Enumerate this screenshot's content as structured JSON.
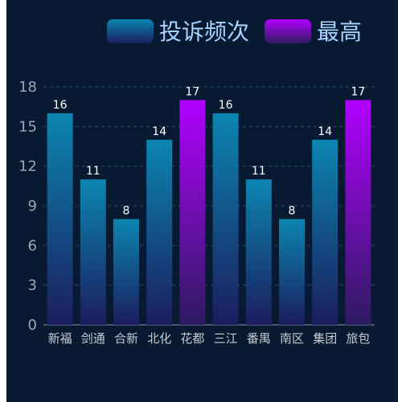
{
  "chart_data": {
    "type": "bar",
    "categories": [
      "新福",
      "剑通",
      "合新",
      "北化",
      "花都",
      "三江",
      "番禺",
      "南区",
      "集团",
      "旅包"
    ],
    "x_axis_label_text": "新福剑通合新北化花都三江番禺南区集团旅包",
    "series": [
      {
        "name": "投诉频次",
        "values": [
          16,
          11,
          8,
          14,
          17,
          16,
          11,
          8,
          14,
          17
        ]
      }
    ],
    "legend": [
      "投诉频次",
      "最高"
    ],
    "highlight_series_name": "最高",
    "highlight_indices": [
      4,
      9
    ],
    "ylim": [
      0,
      18
    ],
    "yticks": [
      0,
      3,
      6,
      9,
      12,
      15,
      18
    ],
    "grid": true,
    "legend_position": "top-right",
    "colors": {
      "background": "#071a32",
      "normal_top": "#0b86b1",
      "normal_bottom": "#1b1d5e",
      "high_top": "#b100ff",
      "high_bottom": "#2e1b61",
      "grid": "#1f4f6e",
      "axis": "#8e9aa8"
    }
  }
}
